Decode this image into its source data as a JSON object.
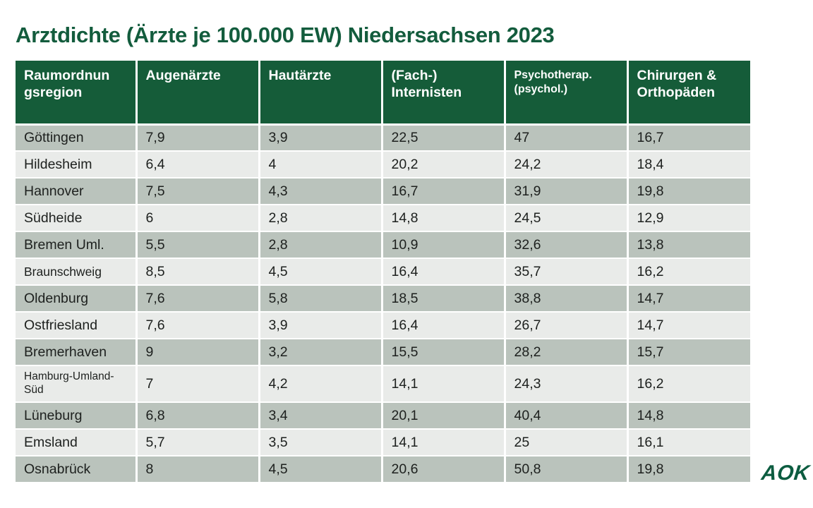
{
  "title": "Arztdichte (Ärzte je 100.000 EW) Niedersachsen 2023",
  "logo": {
    "text": "AOK"
  },
  "colors": {
    "title-color": "#135c3d",
    "header-bg": "#155c39",
    "header-fg": "#ffffff",
    "row-dark": "#bac3bc",
    "row-light": "#e9ebe9",
    "cell-fg": "#1d201e",
    "brand": "#0c5c40",
    "page-bg": "#ffffff"
  },
  "chart_data": {
    "type": "table",
    "title": "Arztdichte (Ärzte je 100.000 EW) Niedersachsen 2023",
    "columns": [
      {
        "id": "raumordnungsregion",
        "label": "Raumordnungsregion"
      },
      {
        "id": "augenaerzte",
        "label": "Augenärzte"
      },
      {
        "id": "hautaerzte",
        "label": "Hautärzte"
      },
      {
        "id": "fach-internisten",
        "label": "(Fach-) Internisten"
      },
      {
        "id": "psychotherapeuten",
        "label": "Psychotherap. (psychol.)"
      },
      {
        "id": "chirurgen-orthopaeden",
        "label": "Chirurgen & Orthopäden"
      }
    ],
    "rows": [
      {
        "region": "Göttingen",
        "values": [
          "7,9",
          "3,9",
          "22,5",
          "47",
          "16,7"
        ]
      },
      {
        "region": "Hildesheim",
        "values": [
          "6,4",
          "4",
          "20,2",
          "24,2",
          "18,4"
        ]
      },
      {
        "region": "Hannover",
        "values": [
          "7,5",
          "4,3",
          "16,7",
          "31,9",
          "19,8"
        ]
      },
      {
        "region": "Südheide",
        "values": [
          "6",
          "2,8",
          "14,8",
          "24,5",
          "12,9"
        ]
      },
      {
        "region": "Bremen Uml.",
        "values": [
          "5,5",
          "2,8",
          "10,9",
          "32,6",
          "13,8"
        ]
      },
      {
        "region": "Braunschweig",
        "values": [
          "8,5",
          "4,5",
          "16,4",
          "35,7",
          "16,2"
        ]
      },
      {
        "region": "Oldenburg",
        "values": [
          "7,6",
          "5,8",
          "18,5",
          "38,8",
          "14,7"
        ]
      },
      {
        "region": "Ostfriesland",
        "values": [
          "7,6",
          "3,9",
          "16,4",
          "26,7",
          "14,7"
        ]
      },
      {
        "region": "Bremerhaven",
        "values": [
          "9",
          "3,2",
          "15,5",
          "28,2",
          "15,7"
        ]
      },
      {
        "region": "Hamburg-Umland-Süd",
        "values": [
          "7",
          "4,2",
          "14,1",
          "24,3",
          "16,2"
        ]
      },
      {
        "region": "Lüneburg",
        "values": [
          "6,8",
          "3,4",
          "20,1",
          "40,4",
          "14,8"
        ]
      },
      {
        "region": "Emsland",
        "values": [
          "5,7",
          "3,5",
          "14,1",
          "25",
          "16,1"
        ]
      },
      {
        "region": "Osnabrück",
        "values": [
          "8",
          "4,5",
          "20,6",
          "50,8",
          "19,8"
        ]
      }
    ]
  }
}
